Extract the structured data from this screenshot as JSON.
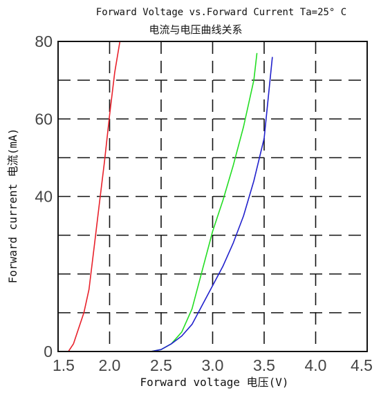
{
  "chart_data": {
    "type": "line",
    "title": "Forward Voltage vs.Forward Current Ta=25° C",
    "subtitle": "电流与电压曲线关系",
    "xlabel": "Forward voltage 电压(V)",
    "ylabel": "Forward current 电流(mA)",
    "xlim": [
      1.5,
      4.5
    ],
    "ylim": [
      0,
      80
    ],
    "x_ticks": [
      1.5,
      2.0,
      2.5,
      3.0,
      3.5,
      4.0,
      4.5
    ],
    "x_tick_labels": [
      "1.5",
      "2.0",
      "2.5",
      "3.0",
      "3.5",
      "4.0",
      "4.5"
    ],
    "y_ticks": [
      0,
      20,
      40,
      60,
      80
    ],
    "y_tick_labels": [
      "0",
      "",
      "40",
      "60",
      "80"
    ],
    "grid": true,
    "grid_x": [
      2.0,
      2.5,
      3.0,
      3.5,
      4.0
    ],
    "grid_y": [
      10,
      20,
      30,
      40,
      50,
      60,
      70
    ],
    "series": [
      {
        "color": "#e8202a",
        "x": [
          1.6,
          1.65,
          1.7,
          1.75,
          1.8,
          1.85,
          1.9,
          1.95,
          2.0,
          2.05,
          2.1
        ],
        "y": [
          0,
          2,
          6,
          10,
          16,
          27,
          38,
          49,
          61,
          72,
          80
        ]
      },
      {
        "color": "#22dd22",
        "x": [
          1.6,
          2.4,
          2.5,
          2.6,
          2.7,
          2.8,
          2.9,
          3.0,
          3.1,
          3.2,
          3.3,
          3.4,
          3.43
        ],
        "y": [
          0,
          0,
          0.5,
          2,
          5,
          11,
          21,
          31,
          39,
          48,
          58,
          70,
          77
        ]
      },
      {
        "color": "#2020cc",
        "x": [
          1.6,
          2.4,
          2.5,
          2.6,
          2.7,
          2.8,
          2.9,
          3.0,
          3.1,
          3.2,
          3.3,
          3.4,
          3.5,
          3.58
        ],
        "y": [
          0,
          0,
          0.5,
          2,
          4,
          7,
          12,
          17,
          22,
          28,
          35,
          44,
          55,
          76
        ]
      }
    ],
    "colors": {
      "background": "#ffffff",
      "axis": "#111111",
      "grid": "#111111"
    }
  }
}
